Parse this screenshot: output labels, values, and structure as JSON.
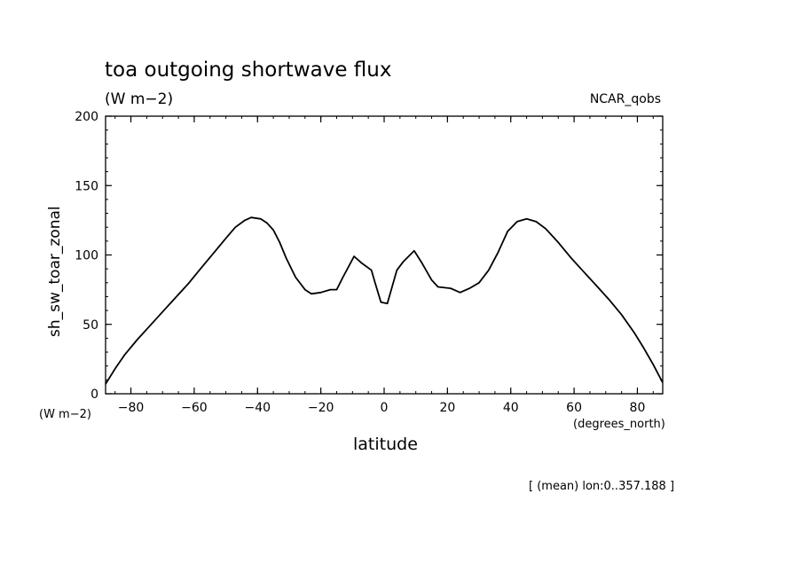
{
  "chart_data": {
    "type": "line",
    "title": "toa outgoing shortwave flux",
    "units": "(W m−2)",
    "model_label": "NCAR_qobs",
    "xlabel": "latitude",
    "ylabel": "sh_sw_toar_zonal",
    "x_units": "(degrees_north)",
    "y_units": "(W m−2)",
    "note": "[ (mean) lon:0..357.188 ]",
    "xlim": [
      -88,
      88
    ],
    "ylim": [
      0,
      200
    ],
    "x_ticks": [
      -80,
      -60,
      -40,
      -20,
      0,
      20,
      40,
      60,
      80
    ],
    "x_tick_labels": [
      "−80",
      "−60",
      "−40",
      "−20",
      "0",
      "20",
      "40",
      "60",
      "80"
    ],
    "y_ticks": [
      0,
      50,
      100,
      150,
      200
    ],
    "y_tick_labels": [
      "0",
      "50",
      "100",
      "150",
      "200"
    ],
    "grid": false,
    "series": [
      {
        "x": [
          -88,
          -85,
          -82,
          -78,
          -74,
          -70,
          -66,
          -62,
          -58,
          -54,
          -50,
          -47,
          -44,
          -42,
          -39,
          -37,
          -35,
          -33,
          -31,
          -28,
          -25,
          -23,
          -20,
          -17,
          -15,
          -13,
          -9.5,
          -7,
          -4,
          -3,
          -1,
          1,
          4,
          6,
          9.5,
          12,
          15,
          17,
          21,
          24,
          27,
          30,
          33,
          36,
          39,
          42,
          45,
          48,
          51,
          55,
          59,
          63,
          67,
          71,
          75,
          79,
          82,
          85,
          88
        ],
        "y": [
          7,
          18,
          28,
          39,
          49,
          59,
          69,
          79,
          90,
          101,
          112,
          120,
          125,
          127,
          126,
          123,
          118,
          109,
          98,
          84,
          75,
          72,
          73,
          75,
          75,
          84,
          99,
          94,
          89,
          81,
          66,
          65,
          89,
          95,
          103,
          94,
          82,
          77,
          76,
          73,
          76,
          80,
          89,
          102,
          117,
          124,
          126,
          124,
          119,
          109,
          98,
          88,
          78,
          68,
          57,
          44,
          33,
          21,
          8
        ]
      }
    ]
  }
}
